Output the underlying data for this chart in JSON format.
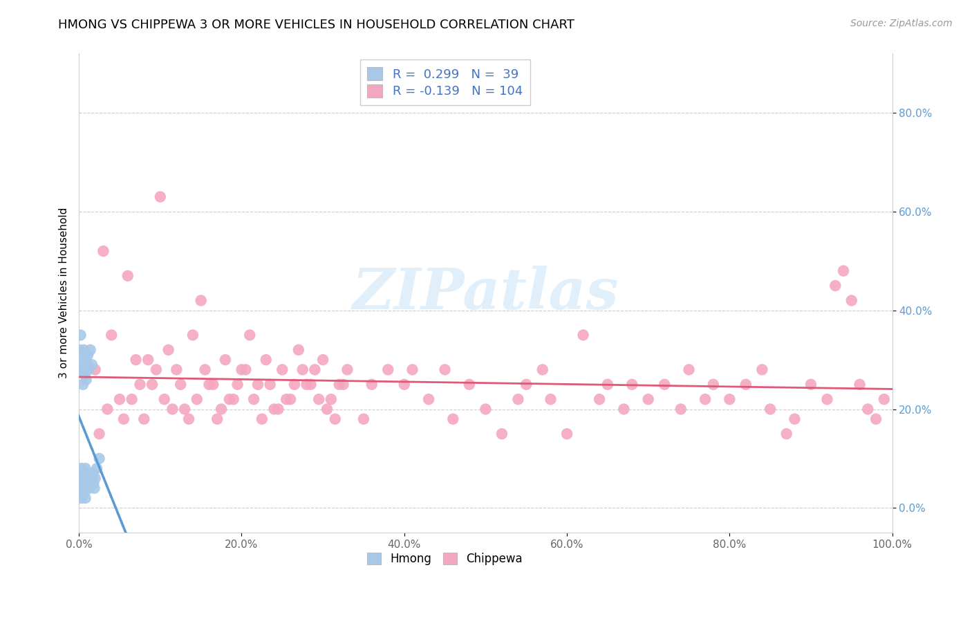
{
  "title": "HMONG VS CHIPPEWA 3 OR MORE VEHICLES IN HOUSEHOLD CORRELATION CHART",
  "source": "Source: ZipAtlas.com",
  "ylabel": "3 or more Vehicles in Household",
  "xlim": [
    0.0,
    1.0
  ],
  "ylim": [
    -0.05,
    0.92
  ],
  "x_ticks": [
    0.0,
    0.2,
    0.4,
    0.6,
    0.8,
    1.0
  ],
  "x_tick_labels": [
    "0.0%",
    "20.0%",
    "40.0%",
    "60.0%",
    "80.0%",
    "100.0%"
  ],
  "y_ticks": [
    0.0,
    0.2,
    0.4,
    0.6,
    0.8
  ],
  "y_tick_labels": [
    "0.0%",
    "20.0%",
    "40.0%",
    "60.0%",
    "80.0%"
  ],
  "hmong_R": 0.299,
  "hmong_N": 39,
  "chippewa_R": -0.139,
  "chippewa_N": 104,
  "hmong_color": "#a8c8e8",
  "chippewa_color": "#f4a8c0",
  "hmong_trend_color": "#5b9bd5",
  "chippewa_trend_color": "#e05878",
  "watermark": "ZIPatlas",
  "hmong_x": [
    0.001,
    0.002,
    0.002,
    0.003,
    0.003,
    0.004,
    0.004,
    0.005,
    0.005,
    0.005,
    0.006,
    0.006,
    0.006,
    0.007,
    0.007,
    0.008,
    0.008,
    0.009,
    0.009,
    0.01,
    0.01,
    0.011,
    0.011,
    0.012,
    0.012,
    0.013,
    0.014,
    0.015,
    0.016,
    0.017,
    0.018,
    0.019,
    0.02,
    0.022,
    0.025,
    0.008,
    0.006,
    0.004,
    0.003
  ],
  "hmong_y": [
    0.32,
    0.28,
    0.35,
    0.05,
    0.08,
    0.04,
    0.3,
    0.07,
    0.25,
    0.03,
    0.28,
    0.06,
    0.32,
    0.05,
    0.27,
    0.08,
    0.3,
    0.04,
    0.26,
    0.07,
    0.29,
    0.05,
    0.31,
    0.06,
    0.28,
    0.04,
    0.32,
    0.05,
    0.29,
    0.07,
    0.05,
    0.04,
    0.06,
    0.08,
    0.1,
    0.02,
    0.03,
    0.05,
    0.02
  ],
  "chippewa_x": [
    0.02,
    0.03,
    0.04,
    0.05,
    0.06,
    0.07,
    0.08,
    0.09,
    0.1,
    0.11,
    0.12,
    0.13,
    0.14,
    0.15,
    0.16,
    0.17,
    0.18,
    0.19,
    0.2,
    0.21,
    0.22,
    0.23,
    0.24,
    0.25,
    0.26,
    0.27,
    0.28,
    0.29,
    0.3,
    0.31,
    0.32,
    0.33,
    0.35,
    0.36,
    0.38,
    0.4,
    0.41,
    0.43,
    0.45,
    0.46,
    0.48,
    0.5,
    0.52,
    0.54,
    0.55,
    0.57,
    0.58,
    0.6,
    0.62,
    0.64,
    0.65,
    0.67,
    0.68,
    0.7,
    0.72,
    0.74,
    0.75,
    0.77,
    0.78,
    0.8,
    0.82,
    0.84,
    0.85,
    0.87,
    0.88,
    0.9,
    0.92,
    0.93,
    0.94,
    0.95,
    0.96,
    0.97,
    0.98,
    0.99,
    0.025,
    0.035,
    0.055,
    0.065,
    0.075,
    0.085,
    0.095,
    0.105,
    0.115,
    0.125,
    0.135,
    0.145,
    0.155,
    0.165,
    0.175,
    0.185,
    0.195,
    0.205,
    0.215,
    0.225,
    0.235,
    0.245,
    0.255,
    0.265,
    0.275,
    0.285,
    0.295,
    0.305,
    0.315,
    0.325
  ],
  "chippewa_y": [
    0.28,
    0.52,
    0.35,
    0.22,
    0.47,
    0.3,
    0.18,
    0.25,
    0.63,
    0.32,
    0.28,
    0.2,
    0.35,
    0.42,
    0.25,
    0.18,
    0.3,
    0.22,
    0.28,
    0.35,
    0.25,
    0.3,
    0.2,
    0.28,
    0.22,
    0.32,
    0.25,
    0.28,
    0.3,
    0.22,
    0.25,
    0.28,
    0.18,
    0.25,
    0.28,
    0.25,
    0.28,
    0.22,
    0.28,
    0.18,
    0.25,
    0.2,
    0.15,
    0.22,
    0.25,
    0.28,
    0.22,
    0.15,
    0.35,
    0.22,
    0.25,
    0.2,
    0.25,
    0.22,
    0.25,
    0.2,
    0.28,
    0.22,
    0.25,
    0.22,
    0.25,
    0.28,
    0.2,
    0.15,
    0.18,
    0.25,
    0.22,
    0.45,
    0.48,
    0.42,
    0.25,
    0.2,
    0.18,
    0.22,
    0.15,
    0.2,
    0.18,
    0.22,
    0.25,
    0.3,
    0.28,
    0.22,
    0.2,
    0.25,
    0.18,
    0.22,
    0.28,
    0.25,
    0.2,
    0.22,
    0.25,
    0.28,
    0.22,
    0.18,
    0.25,
    0.2,
    0.22,
    0.25,
    0.28,
    0.25,
    0.22,
    0.2,
    0.18,
    0.25
  ]
}
